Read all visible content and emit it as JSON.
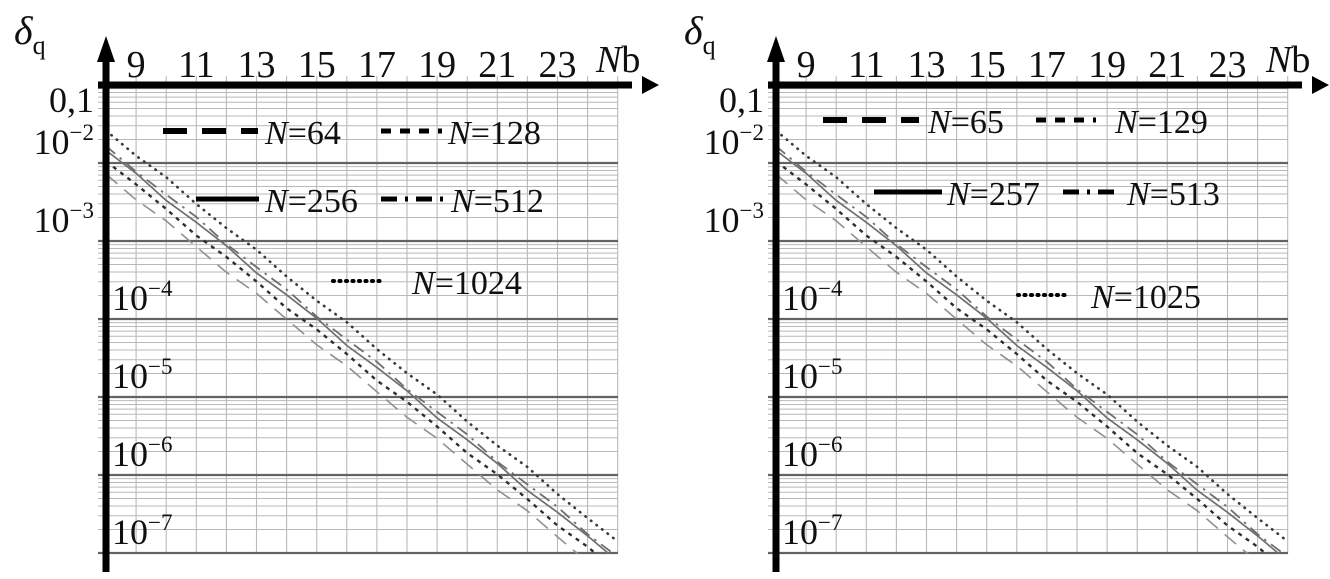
{
  "page": {
    "background": "#ffffff",
    "description": "Two semilog charts of quantization error versus bit width"
  },
  "colors": {
    "axis": "#000000",
    "grid_minor": "#b9b9b9",
    "grid_major": "#636363",
    "text": "#101010",
    "curve_dotted": "#3a3a3a",
    "curve_solid": "#6f6f6f",
    "curve_short_dash": "#2e2e2e",
    "curve_dash_dot": "#6f6f6f",
    "curve_long_dash": "#8f8f8f",
    "legend_stroke": "#000000"
  },
  "chart_data": [
    {
      "type": "line",
      "title": "",
      "y_axis_label": {
        "base": "δ",
        "sub": "q"
      },
      "x_axis_label": {
        "italic": "N",
        "normal": "b"
      },
      "x_ticks": [
        "9",
        "11",
        "13",
        "15",
        "17",
        "19",
        "21",
        "23"
      ],
      "x_tick_values": [
        9,
        11,
        13,
        15,
        17,
        19,
        21,
        23
      ],
      "y_ticks": [
        {
          "label": "0,1",
          "log": -1,
          "side": "left",
          "below": true
        },
        {
          "base": "10",
          "exp": "−2",
          "log": -2,
          "side": "left"
        },
        {
          "base": "10",
          "exp": "−3",
          "log": -3,
          "side": "left"
        },
        {
          "base": "10",
          "exp": "−4",
          "log": -4,
          "side": "inside"
        },
        {
          "base": "10",
          "exp": "−5",
          "log": -5,
          "side": "inside"
        },
        {
          "base": "10",
          "exp": "−6",
          "log": -6,
          "side": "inside"
        },
        {
          "base": "10",
          "exp": "−7",
          "log": -7,
          "side": "inside"
        }
      ],
      "xlim": [
        8,
        25
      ],
      "ylim_log": [
        -7,
        -1
      ],
      "grid": true,
      "legend": {
        "position": "inside-top",
        "rows": [
          [
            0,
            1
          ],
          [
            2,
            3
          ],
          [
            4
          ]
        ]
      },
      "x": [
        8,
        9,
        10,
        11,
        12,
        13,
        14,
        15,
        16,
        17,
        18,
        19,
        20,
        21,
        22,
        23,
        24,
        25
      ],
      "series": [
        {
          "name": "N=64",
          "style": "long-dash",
          "values": [
            0.0072,
            0.00353,
            0.00173,
            0.000847,
            0.000415,
            0.000203,
            9.97e-05,
            4.88e-05,
            2.39e-05,
            1.17e-05,
            5.74e-06,
            2.81e-06,
            1.38e-06,
            6.76e-07,
            3.31e-07,
            1.62e-07,
            7.95e-08,
            3.9e-08
          ]
        },
        {
          "name": "N=128",
          "style": "short-dash",
          "values": [
            0.0105,
            0.00515,
            0.00252,
            0.00124,
            0.000605,
            0.000297,
            0.000145,
            7.12e-05,
            3.49e-05,
            1.71e-05,
            8.38e-06,
            4.11e-06,
            2.01e-06,
            9.86e-07,
            4.83e-07,
            2.37e-07,
            1.16e-07,
            5.69e-08
          ]
        },
        {
          "name": "N=256",
          "style": "solid",
          "values": [
            0.0145,
            0.0071,
            0.00348,
            0.00171,
            0.000836,
            0.00041,
            0.000201,
            9.84e-05,
            4.82e-05,
            2.36e-05,
            1.16e-05,
            5.67e-06,
            2.78e-06,
            1.36e-06,
            6.67e-07,
            3.27e-07,
            1.6e-07,
            7.85e-08
          ]
        },
        {
          "name": "N=512",
          "style": "dash-dot",
          "values": [
            0.0165,
            0.00809,
            0.00396,
            0.00194,
            0.000951,
            0.000466,
            0.000228,
            0.000112,
            5.48e-05,
            2.69e-05,
            1.32e-05,
            6.46e-06,
            3.16e-06,
            1.55e-06,
            7.6e-07,
            3.72e-07,
            1.82e-07,
            8.94e-08
          ]
        },
        {
          "name": "N=1024",
          "style": "dotted",
          "values": [
            0.026,
            0.0127,
            0.00624,
            0.00306,
            0.0015,
            0.000734,
            0.00036,
            0.000176,
            8.64e-05,
            4.23e-05,
            2.07e-05,
            1.02e-05,
            4.98e-06,
            2.44e-06,
            1.2e-06,
            5.86e-07,
            2.87e-07,
            1.41e-07
          ]
        }
      ]
    },
    {
      "type": "line",
      "title": "",
      "y_axis_label": {
        "base": "δ",
        "sub": "q"
      },
      "x_axis_label": {
        "italic": "N",
        "normal": "b"
      },
      "x_ticks": [
        "9",
        "11",
        "13",
        "15",
        "17",
        "19",
        "21",
        "23"
      ],
      "x_tick_values": [
        9,
        11,
        13,
        15,
        17,
        19,
        21,
        23
      ],
      "y_ticks": [
        {
          "label": "0,1",
          "log": -1,
          "side": "left",
          "below": true
        },
        {
          "base": "10",
          "exp": "−2",
          "log": -2,
          "side": "left"
        },
        {
          "base": "10",
          "exp": "−3",
          "log": -3,
          "side": "left"
        },
        {
          "base": "10",
          "exp": "−4",
          "log": -4,
          "side": "inside"
        },
        {
          "base": "10",
          "exp": "−5",
          "log": -5,
          "side": "inside"
        },
        {
          "base": "10",
          "exp": "−6",
          "log": -6,
          "side": "inside"
        },
        {
          "base": "10",
          "exp": "−7",
          "log": -7,
          "side": "inside"
        }
      ],
      "xlim": [
        8,
        25
      ],
      "ylim_log": [
        -7,
        -1
      ],
      "grid": true,
      "legend": {
        "position": "inside-top",
        "rows": [
          [
            0,
            1
          ],
          [
            2,
            3
          ],
          [
            4
          ]
        ]
      },
      "x": [
        8,
        9,
        10,
        11,
        12,
        13,
        14,
        15,
        16,
        17,
        18,
        19,
        20,
        21,
        22,
        23,
        24,
        25
      ],
      "series": [
        {
          "name": "N=65",
          "style": "long-dash",
          "values": [
            0.0072,
            0.00353,
            0.00173,
            0.000847,
            0.000415,
            0.000203,
            9.97e-05,
            4.88e-05,
            2.39e-05,
            1.17e-05,
            5.74e-06,
            2.81e-06,
            1.38e-06,
            6.76e-07,
            3.31e-07,
            1.62e-07,
            7.95e-08,
            3.9e-08
          ]
        },
        {
          "name": "N=129",
          "style": "short-dash",
          "values": [
            0.0105,
            0.00515,
            0.00252,
            0.00124,
            0.000605,
            0.000297,
            0.000145,
            7.12e-05,
            3.49e-05,
            1.71e-05,
            8.38e-06,
            4.11e-06,
            2.01e-06,
            9.86e-07,
            4.83e-07,
            2.37e-07,
            1.16e-07,
            5.69e-08
          ]
        },
        {
          "name": "N=257",
          "style": "solid",
          "values": [
            0.0145,
            0.0071,
            0.00348,
            0.00171,
            0.000836,
            0.00041,
            0.000201,
            9.84e-05,
            4.82e-05,
            2.36e-05,
            1.16e-05,
            5.67e-06,
            2.78e-06,
            1.36e-06,
            6.67e-07,
            3.27e-07,
            1.6e-07,
            7.85e-08
          ]
        },
        {
          "name": "N=513",
          "style": "dash-dot",
          "values": [
            0.0165,
            0.00809,
            0.00396,
            0.00194,
            0.000951,
            0.000466,
            0.000228,
            0.000112,
            5.48e-05,
            2.69e-05,
            1.32e-05,
            6.46e-06,
            3.16e-06,
            1.55e-06,
            7.6e-07,
            3.72e-07,
            1.82e-07,
            8.94e-08
          ]
        },
        {
          "name": "N=1025",
          "style": "dotted",
          "values": [
            0.026,
            0.0127,
            0.00624,
            0.00306,
            0.0015,
            0.000734,
            0.00036,
            0.000176,
            8.64e-05,
            4.23e-05,
            2.07e-05,
            1.02e-05,
            4.98e-06,
            2.44e-06,
            1.2e-06,
            5.86e-07,
            2.87e-07,
            1.41e-07
          ]
        }
      ]
    }
  ]
}
